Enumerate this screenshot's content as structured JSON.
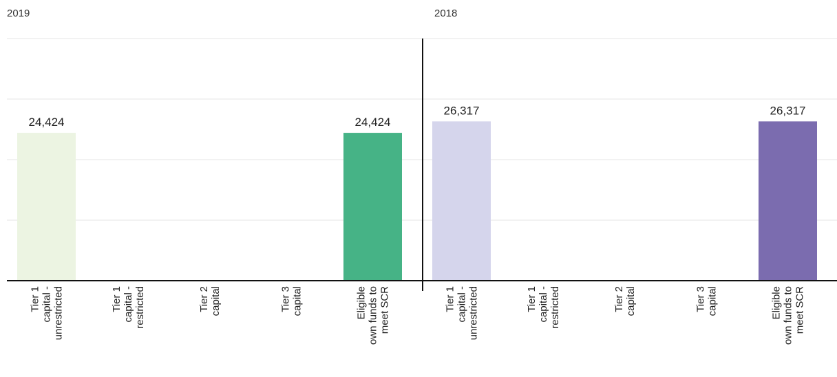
{
  "chart_data": [
    {
      "type": "bar",
      "title": "2019",
      "categories": [
        [
          "Tier 1",
          "capital -",
          "unrestricted"
        ],
        [
          "Tier 1",
          "capital -",
          "restricted"
        ],
        [
          "Tier 2",
          "capital"
        ],
        [
          "Tier 3",
          "capital"
        ],
        [
          "Eligible",
          "own funds to",
          "meet SCR"
        ]
      ],
      "values": [
        24424,
        null,
        null,
        null,
        24424
      ],
      "value_labels": [
        "24,424",
        "",
        "",
        "",
        "24,424"
      ],
      "colors": [
        "#ecf4e2",
        "#ecf4e2",
        "#ecf4e2",
        "#ecf4e2",
        "#46b386"
      ],
      "ylim": [
        0,
        40000
      ],
      "grid": true
    },
    {
      "type": "bar",
      "title": "2018",
      "categories": [
        [
          "Tier 1",
          "capital -",
          "unrestricted"
        ],
        [
          "Tier 1",
          "capital -",
          "restricted"
        ],
        [
          "Tier 2",
          "capital"
        ],
        [
          "Tier 3",
          "capital"
        ],
        [
          "Eligible",
          "own funds to",
          "meet SCR"
        ]
      ],
      "values": [
        26317,
        null,
        null,
        null,
        26317
      ],
      "value_labels": [
        "26,317",
        "",
        "",
        "",
        "26,317"
      ],
      "colors": [
        "#d5d5ec",
        "#d5d5ec",
        "#d5d5ec",
        "#d5d5ec",
        "#7b6caf"
      ],
      "ylim": [
        0,
        40000
      ],
      "grid": true
    }
  ]
}
